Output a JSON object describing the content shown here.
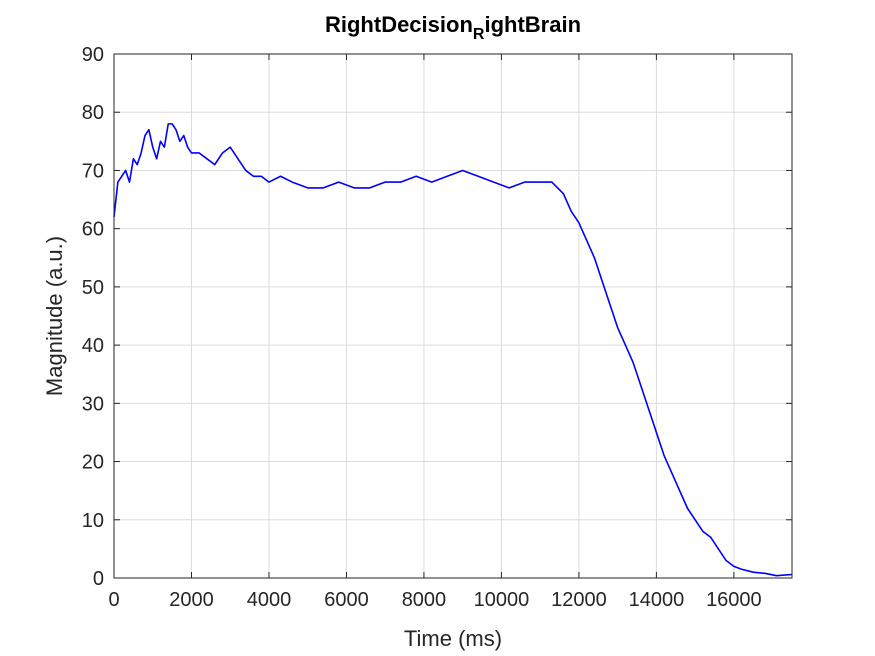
{
  "chart_data": {
    "type": "line",
    "title": "RightDecision",
    "title_subscript": "R",
    "title_suffix": "ightBrain",
    "xlabel": "Time (ms)",
    "ylabel": "Magnitude (a.u.)",
    "xlim": [
      0,
      17500
    ],
    "ylim": [
      0,
      90
    ],
    "xticks": [
      0,
      2000,
      4000,
      6000,
      8000,
      10000,
      12000,
      14000,
      16000
    ],
    "yticks": [
      0,
      10,
      20,
      30,
      40,
      50,
      60,
      70,
      80,
      90
    ],
    "xtick_labels": [
      "0",
      "2000",
      "4000",
      "6000",
      "8000",
      "10000",
      "12000",
      "14000",
      "16000"
    ],
    "ytick_labels": [
      "0",
      "10",
      "20",
      "30",
      "40",
      "50",
      "60",
      "70",
      "80",
      "90"
    ],
    "grid": true,
    "line_color": "#0000ff",
    "series": [
      {
        "x": [
          0,
          100,
          200,
          300,
          400,
          500,
          600,
          700,
          800,
          900,
          1000,
          1100,
          1200,
          1300,
          1400,
          1500,
          1600,
          1700,
          1800,
          1900,
          2000,
          2200,
          2400,
          2600,
          2800,
          3000,
          3200,
          3400,
          3600,
          3800,
          4000,
          4300,
          4600,
          5000,
          5400,
          5800,
          6200,
          6600,
          7000,
          7400,
          7800,
          8200,
          8600,
          9000,
          9400,
          9800,
          10200,
          10600,
          11000,
          11300,
          11600,
          11800,
          12000,
          12200,
          12400,
          12600,
          12800,
          13000,
          13200,
          13400,
          13600,
          13800,
          14000,
          14200,
          14400,
          14600,
          14800,
          15000,
          15200,
          15400,
          15600,
          15800,
          16000,
          16200,
          16500,
          16800,
          17100,
          17300,
          17500
        ],
        "y": [
          62,
          68,
          69,
          70,
          68,
          72,
          71,
          73,
          76,
          77,
          74,
          72,
          75,
          74,
          78,
          78,
          77,
          75,
          76,
          74,
          73,
          73,
          72,
          71,
          73,
          74,
          72,
          70,
          69,
          69,
          68,
          69,
          68,
          67,
          67,
          68,
          67,
          67,
          68,
          68,
          69,
          68,
          69,
          70,
          69,
          68,
          67,
          68,
          68,
          68,
          66,
          63,
          61,
          58,
          55,
          51,
          47,
          43,
          40,
          37,
          33,
          29,
          25,
          21,
          18,
          15,
          12,
          10,
          8,
          7,
          5,
          3,
          2,
          1.5,
          1,
          0.8,
          0.4,
          0.5,
          0.6
        ]
      }
    ]
  }
}
